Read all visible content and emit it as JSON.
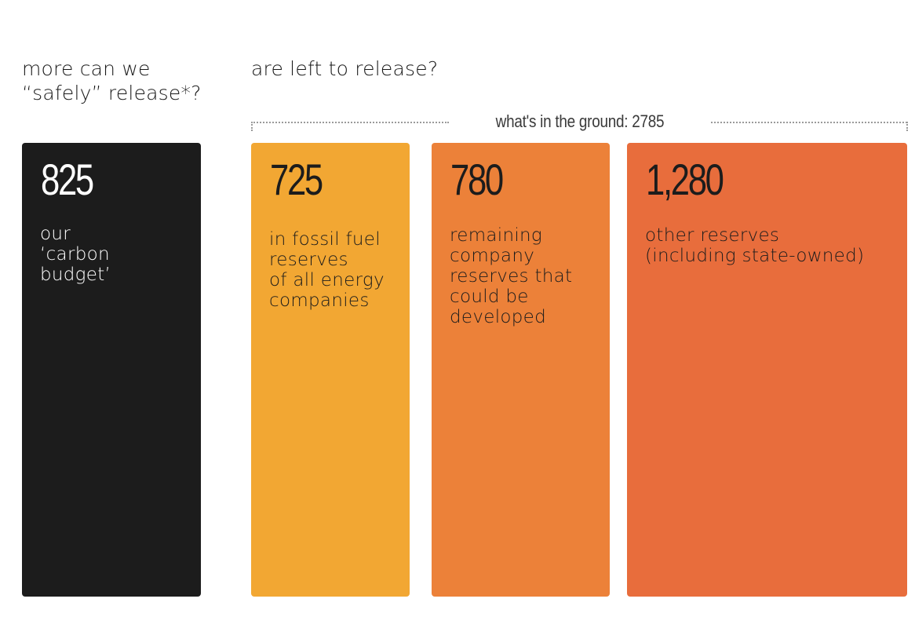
{
  "headings": {
    "left": "more can we\n“safely” release*?",
    "right": "are left to release?"
  },
  "bracket": {
    "label": "what's in the ground: 2785"
  },
  "chart_data": {
    "type": "bar",
    "categories": [
      "carbon budget",
      "energy company reserves",
      "remaining company reserves",
      "other reserves"
    ],
    "values": [
      825,
      725,
      780,
      1280
    ],
    "blocks": [
      {
        "value": 825,
        "value_label": "825",
        "description": "our\n‘carbon\nbudget’",
        "color": "#1c1c1c",
        "text_color": "#ffffff"
      },
      {
        "value": 725,
        "value_label": "725",
        "description": "in fossil fuel\nreserves\nof all energy\ncompanies",
        "color": "#f2a733",
        "text_color": "#1c1c1c"
      },
      {
        "value": 780,
        "value_label": "780",
        "description": "remaining\ncompany\nreserves that\ncould be\ndeveloped",
        "color": "#ec8139",
        "text_color": "#1c1c1c"
      },
      {
        "value": 1280,
        "value_label": "1,280",
        "description": "other reserves\n(including state-owned)",
        "color": "#e86d3c",
        "text_color": "#1c1c1c"
      }
    ],
    "total_in_ground": 2785
  }
}
